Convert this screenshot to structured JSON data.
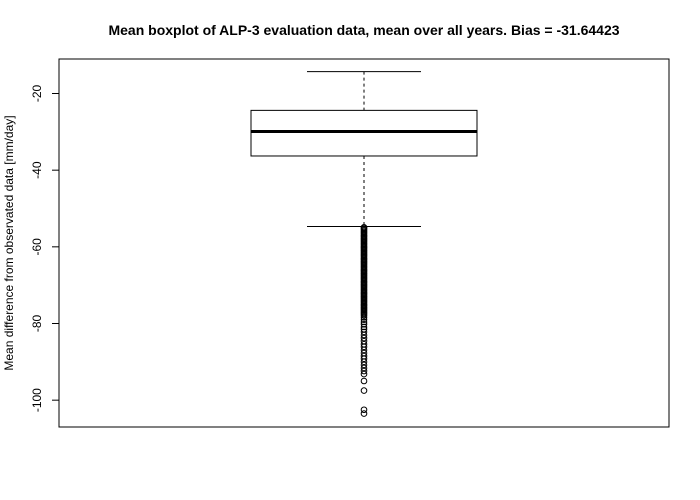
{
  "chart_data": {
    "type": "boxplot",
    "title": "Mean boxplot of ALP-3 evaluation data, mean over all years. Bias = -31.64423",
    "xlabel": "",
    "ylabel": "Mean difference from observated data [mm/day]",
    "ylim": [
      -107,
      -11
    ],
    "yticks": [
      -20,
      -40,
      -60,
      -80,
      -100
    ],
    "ytick_labels": [
      "-20",
      "-40",
      "-60",
      "-80",
      "-100"
    ],
    "grid": false,
    "box": {
      "whisker_high": -14.3,
      "q3": -24.4,
      "median": -29.9,
      "q1": -36.3,
      "whisker_low": -54.7
    },
    "outliers": [
      -54.9,
      -55.1,
      -55.4,
      -55.7,
      -56.0,
      -56.3,
      -56.6,
      -56.9,
      -57.2,
      -57.5,
      -57.8,
      -58.1,
      -58.4,
      -58.7,
      -59.0,
      -59.3,
      -59.6,
      -59.9,
      -60.2,
      -60.5,
      -60.8,
      -61.1,
      -61.4,
      -61.7,
      -62.0,
      -62.3,
      -62.6,
      -62.9,
      -63.2,
      -63.5,
      -63.8,
      -64.1,
      -64.4,
      -64.7,
      -65.0,
      -65.3,
      -65.6,
      -65.9,
      -66.2,
      -66.5,
      -66.8,
      -67.1,
      -67.4,
      -67.7,
      -68.0,
      -68.3,
      -68.6,
      -68.9,
      -69.2,
      -69.5,
      -69.8,
      -70.1,
      -70.4,
      -70.7,
      -71.0,
      -71.3,
      -71.6,
      -71.9,
      -72.2,
      -72.5,
      -72.8,
      -73.1,
      -73.4,
      -73.7,
      -74.0,
      -74.3,
      -74.6,
      -74.9,
      -75.2,
      -75.5,
      -75.8,
      -76.1,
      -76.4,
      -76.7,
      -77.0,
      -77.3,
      -77.6,
      -77.9,
      -78.4,
      -79.0,
      -79.6,
      -80.2,
      -80.9,
      -81.5,
      -82.2,
      -83.0,
      -83.8,
      -84.6,
      -85.4,
      -86.1,
      -86.9,
      -87.7,
      -88.5,
      -89.2,
      -90.0,
      -90.8,
      -91.6,
      -92.4,
      -93.2,
      -95.0,
      -97.5,
      -102.5,
      -103.5
    ]
  }
}
